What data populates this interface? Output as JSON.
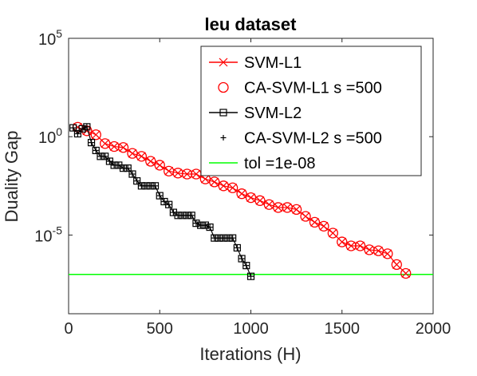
{
  "chart_data": {
    "type": "line",
    "title": "leu dataset",
    "xlabel": "Iterations (H)",
    "ylabel": "Duality Gap",
    "xlim": [
      0,
      2000
    ],
    "ylim_log10": [
      -9,
      5
    ],
    "yscale": "log",
    "grid": false,
    "legend_position": "top-right",
    "x_ticks": [
      {
        "value": 0,
        "label": "0"
      },
      {
        "value": 500,
        "label": "500"
      },
      {
        "value": 1000,
        "label": "1000"
      },
      {
        "value": 1500,
        "label": "1500"
      },
      {
        "value": 2000,
        "label": "2000"
      }
    ],
    "y_ticks": [
      {
        "exp": 5,
        "base": "10",
        "sup": "5"
      },
      {
        "exp": 0,
        "base": "10",
        "sup": "0"
      },
      {
        "exp": -5,
        "base": "10",
        "sup": "-5"
      }
    ],
    "series": [
      {
        "name": "SVM-L1",
        "color": "#ff0000",
        "marker": "x",
        "line": true,
        "x": [
          50,
          100,
          150,
          200,
          250,
          300,
          350,
          400,
          450,
          500,
          550,
          600,
          650,
          700,
          750,
          800,
          850,
          900,
          950,
          1000,
          1050,
          1100,
          1150,
          1200,
          1250,
          1300,
          1350,
          1400,
          1450,
          1500,
          1550,
          1600,
          1650,
          1700,
          1750,
          1800,
          1850
        ],
        "log10_y": [
          0.48,
          0.3,
          0.1,
          -0.35,
          -0.5,
          -0.55,
          -0.85,
          -1.0,
          -1.25,
          -1.45,
          -1.75,
          -1.85,
          -1.9,
          -1.9,
          -2.15,
          -2.3,
          -2.5,
          -2.6,
          -2.9,
          -3.1,
          -3.25,
          -3.45,
          -3.6,
          -3.6,
          -3.7,
          -4.05,
          -4.35,
          -4.55,
          -4.9,
          -5.35,
          -5.55,
          -5.55,
          -5.75,
          -5.8,
          -5.95,
          -6.5,
          -6.95
        ]
      },
      {
        "name": "CA-SVM-L1 s =500",
        "color": "#ff0000",
        "marker": "o",
        "line": false,
        "x": [
          50,
          100,
          150,
          200,
          250,
          300,
          350,
          400,
          450,
          500,
          550,
          600,
          650,
          700,
          750,
          800,
          850,
          900,
          950,
          1000,
          1050,
          1100,
          1150,
          1200,
          1250,
          1300,
          1350,
          1400,
          1450,
          1500,
          1550,
          1600,
          1650,
          1700,
          1750,
          1800,
          1850
        ],
        "log10_y": [
          0.48,
          0.3,
          0.1,
          -0.35,
          -0.5,
          -0.55,
          -0.85,
          -1.0,
          -1.25,
          -1.45,
          -1.75,
          -1.85,
          -1.9,
          -1.9,
          -2.15,
          -2.3,
          -2.5,
          -2.6,
          -2.9,
          -3.1,
          -3.25,
          -3.45,
          -3.6,
          -3.6,
          -3.7,
          -4.05,
          -4.35,
          -4.55,
          -4.9,
          -5.35,
          -5.55,
          -5.55,
          -5.75,
          -5.8,
          -5.95,
          -6.5,
          -6.95
        ]
      },
      {
        "name": "SVM-L2",
        "color": "#000000",
        "marker": "square",
        "line": true,
        "x": [
          25,
          50,
          75,
          100,
          125,
          150,
          175,
          200,
          225,
          250,
          275,
          300,
          325,
          350,
          375,
          400,
          425,
          450,
          475,
          500,
          525,
          550,
          575,
          600,
          625,
          650,
          675,
          700,
          725,
          750,
          775,
          800,
          825,
          850,
          875,
          900,
          925,
          950,
          975,
          1000
        ],
        "log10_y": [
          0.45,
          0.15,
          0.4,
          0.5,
          -0.3,
          -0.7,
          -1.0,
          -1.0,
          -1.25,
          -1.45,
          -1.45,
          -1.6,
          -1.6,
          -1.9,
          -2.25,
          -2.5,
          -2.5,
          -2.5,
          -2.5,
          -3.0,
          -3.3,
          -3.45,
          -3.85,
          -4.0,
          -4.0,
          -4.0,
          -4.0,
          -4.4,
          -4.5,
          -4.5,
          -4.6,
          -5.15,
          -5.15,
          -5.15,
          -5.15,
          -5.15,
          -5.65,
          -6.2,
          -6.55,
          -7.1
        ]
      },
      {
        "name": "CA-SVM-L2 s =500",
        "color": "#000000",
        "marker": "plus",
        "line": false,
        "x": [
          25,
          50,
          75,
          100,
          125,
          150,
          175,
          200,
          225,
          250,
          275,
          300,
          325,
          350,
          375,
          400,
          425,
          450,
          475,
          500,
          525,
          550,
          575,
          600,
          625,
          650,
          675,
          700,
          725,
          750,
          775,
          800,
          825,
          850,
          875,
          900,
          925,
          950,
          975,
          1000
        ],
        "log10_y": [
          0.45,
          0.15,
          0.4,
          0.5,
          -0.3,
          -0.7,
          -1.0,
          -1.0,
          -1.25,
          -1.45,
          -1.45,
          -1.6,
          -1.6,
          -1.9,
          -2.25,
          -2.5,
          -2.5,
          -2.5,
          -2.5,
          -3.0,
          -3.3,
          -3.45,
          -3.85,
          -4.0,
          -4.0,
          -4.0,
          -4.0,
          -4.4,
          -4.5,
          -4.5,
          -4.6,
          -5.15,
          -5.15,
          -5.15,
          -5.15,
          -5.15,
          -5.65,
          -6.2,
          -6.55,
          -7.1
        ]
      },
      {
        "name": "tol =1e-08",
        "color": "#00ff00",
        "marker": "none",
        "line": true,
        "x": [
          0,
          2000
        ],
        "log10_y": [
          -7,
          -7
        ]
      }
    ]
  }
}
